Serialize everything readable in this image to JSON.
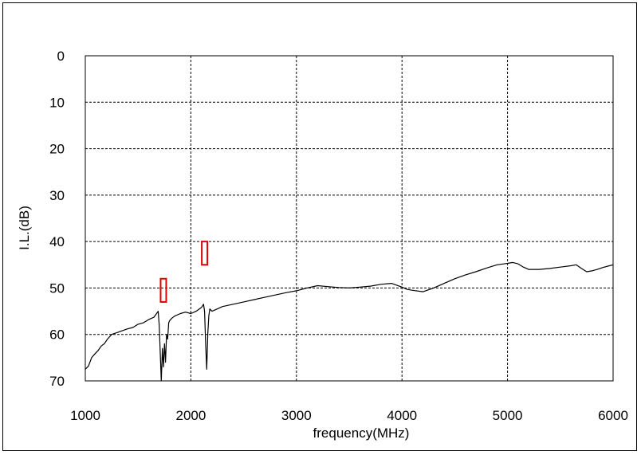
{
  "chart_data": {
    "type": "line",
    "title": "",
    "xlabel": "frequency(MHz)",
    "ylabel": "I.L.(dB)",
    "xlim": [
      1000,
      6000
    ],
    "ylim": [
      0,
      70
    ],
    "y_inverted": true,
    "grid": true,
    "grid_style": "dashed",
    "x_ticks": [
      1000,
      2000,
      3000,
      4000,
      5000,
      6000
    ],
    "y_ticks": [
      0,
      10,
      20,
      30,
      40,
      50,
      60,
      70
    ],
    "colors": {
      "line": "#000000",
      "marker": "#e00000",
      "grid": "#000000"
    },
    "series": [
      {
        "x": [
          1000,
          1030,
          1060,
          1090,
          1120,
          1150,
          1180,
          1210,
          1250,
          1300,
          1350,
          1400,
          1450,
          1500,
          1550,
          1600,
          1650,
          1690,
          1700,
          1710,
          1720,
          1730,
          1740,
          1750,
          1760,
          1770,
          1780,
          1790,
          1800,
          1820,
          1850,
          1900,
          1950,
          2000,
          2050,
          2100,
          2120,
          2130,
          2140,
          2150,
          2160,
          2170,
          2180,
          2200,
          2250,
          2300,
          2400,
          2500,
          2600,
          2700,
          2800,
          2900,
          3000,
          3100,
          3200,
          3300,
          3400,
          3500,
          3600,
          3700,
          3800,
          3900,
          4000,
          4050,
          4100,
          4200,
          4300,
          4400,
          4500,
          4600,
          4700,
          4800,
          4900,
          5000,
          5050,
          5100,
          5150,
          5200,
          5300,
          5400,
          5500,
          5600,
          5650,
          5700,
          5750,
          5800,
          5850,
          5900,
          5950,
          6000
        ],
        "values": [
          67.5,
          66.8,
          65.0,
          64.2,
          63.5,
          62.5,
          62.0,
          61.0,
          60.0,
          59.6,
          59.2,
          58.8,
          58.5,
          57.8,
          57.5,
          56.8,
          56.3,
          55.0,
          58.0,
          64.0,
          70.0,
          63.0,
          67.0,
          62.0,
          66.0,
          60.0,
          61.0,
          57.5,
          57.0,
          56.5,
          56.0,
          55.5,
          55.2,
          55.5,
          55.0,
          54.2,
          53.5,
          55.0,
          62.0,
          67.5,
          60.0,
          56.0,
          54.5,
          55.0,
          54.5,
          54.0,
          53.5,
          53.0,
          52.5,
          52.0,
          51.5,
          51.0,
          50.6,
          50.0,
          49.5,
          49.7,
          49.9,
          50.0,
          49.8,
          49.6,
          49.2,
          49.0,
          49.8,
          50.3,
          50.5,
          50.8,
          50.0,
          49.0,
          48.0,
          47.2,
          46.5,
          45.7,
          45.0,
          44.7,
          44.5,
          44.8,
          45.5,
          46.0,
          46.0,
          45.8,
          45.5,
          45.2,
          45.0,
          45.8,
          46.5,
          46.3,
          46.0,
          45.6,
          45.3,
          45.0
        ]
      }
    ],
    "markers": [
      {
        "x": 1740,
        "y_top": 48,
        "y_bottom": 53
      },
      {
        "x": 2130,
        "y_top": 40,
        "y_bottom": 45
      }
    ]
  }
}
